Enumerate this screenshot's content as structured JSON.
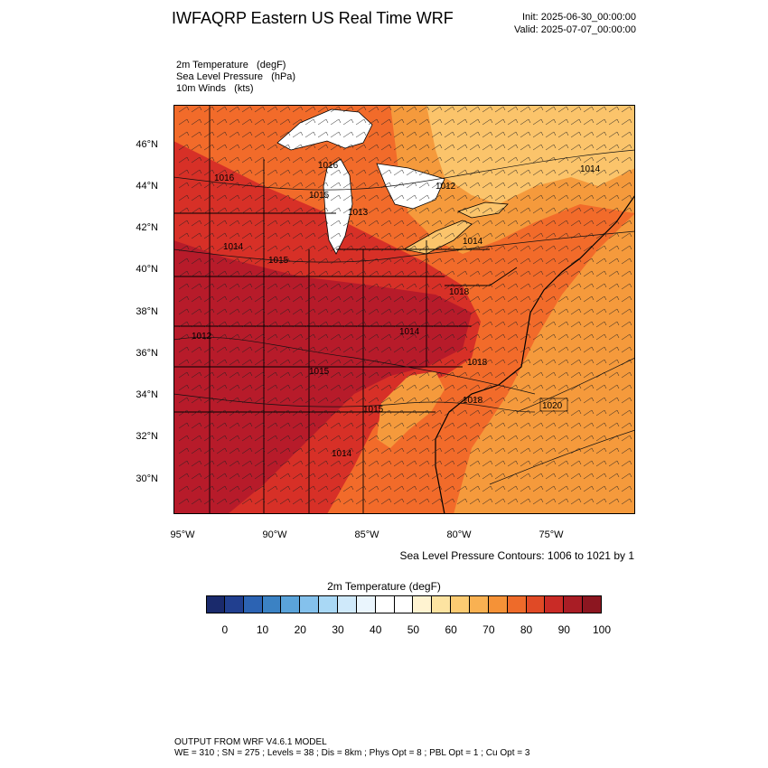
{
  "header": {
    "title": "IWFAQRP Eastern US Real Time WRF",
    "init": "Init: 2025-06-30_00:00:00",
    "valid": "Valid: 2025-07-07_00:00:00"
  },
  "fields": [
    "2m Temperature   (degF)",
    "Sea Level Pressure   (hPa)",
    "10m Winds   (kts)"
  ],
  "map": {
    "lat_labels": [
      "46°N",
      "44°N",
      "42°N",
      "40°N",
      "38°N",
      "36°N",
      "34°N",
      "32°N",
      "30°N"
    ],
    "lon_labels": [
      "95°W",
      "90°W",
      "85°W",
      "80°W",
      "75°W"
    ],
    "isobar_labels": [
      "1016",
      "1016",
      "1015",
      "1013",
      "1012",
      "1014",
      "1015",
      "1014",
      "1014",
      "1012",
      "1014",
      "1018",
      "1015",
      "1015",
      "1018",
      "1018",
      "1014",
      "1020"
    ],
    "colors": {
      "hottest": "#b2182b",
      "hot": "#d73027",
      "warm": "#f26b2a",
      "mild": "#f59a3c",
      "cool": "#fbc46b",
      "lake": "#ffffff"
    }
  },
  "contour_note": "Sea Level Pressure Contours: 1006 to 1021 by 1",
  "colorbar": {
    "title": "2m Temperature  (degF)",
    "colors": [
      "#1a2a6c",
      "#213f8f",
      "#2c63b3",
      "#3b82c4",
      "#5aa3d9",
      "#84c1ec",
      "#a9d8f5",
      "#cfe9fa",
      "#eaf5fd",
      "#ffffff",
      "#ffffff",
      "#fff3d1",
      "#fde3a1",
      "#fccb72",
      "#f9b152",
      "#f59237",
      "#ee6b2a",
      "#e04a26",
      "#c92b26",
      "#a91d25",
      "#8c1620"
    ],
    "labels": [
      "0",
      "10",
      "20",
      "30",
      "40",
      "50",
      "60",
      "70",
      "80",
      "90",
      "100"
    ]
  },
  "footer": {
    "line1": "OUTPUT FROM WRF V4.6.1 MODEL",
    "line2": "WE = 310 ; SN = 275 ; Levels = 38 ; Dis = 8km ; Phys Opt = 8 ; PBL Opt = 1 ; Cu Opt = 3"
  }
}
